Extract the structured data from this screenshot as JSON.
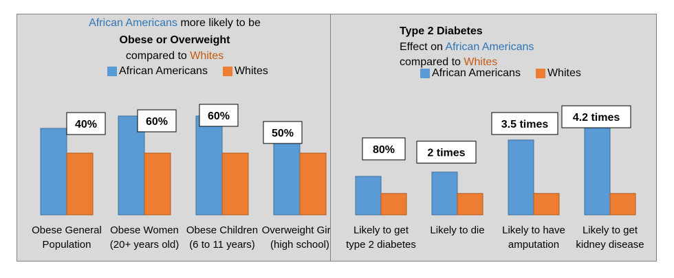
{
  "colors": {
    "african_americans": "#5b9bd5",
    "whites": "#ed7d31",
    "panel_bg": "#d9d9d9",
    "title_blue": "#2e75b6",
    "title_orange": "#c55a11"
  },
  "chart_data": [
    {
      "type": "bar",
      "title_line1_blue": "African Americans",
      "title_line1_rest": " more likely to be",
      "title_line2": "Obese or Overweight",
      "title_line3_prefix": "compared to ",
      "title_line3_orange": "Whites",
      "legend": [
        "African Americans",
        "Whites"
      ],
      "categories": [
        [
          "Obese General",
          "Population"
        ],
        [
          "Obese Women",
          "(20+ years old)"
        ],
        [
          "Obese Children",
          "(6 to 11 years)"
        ],
        [
          "Overweight Girls",
          "(high school)"
        ]
      ],
      "series": [
        {
          "name": "African Americans",
          "values": [
            1.4,
            1.6,
            1.6,
            1.5
          ]
        },
        {
          "name": "Whites",
          "values": [
            1.0,
            1.0,
            1.0,
            1.0
          ]
        }
      ],
      "data_labels": [
        "40%",
        "60%",
        "60%",
        "50%"
      ],
      "ylim": [
        0,
        1.7
      ]
    },
    {
      "type": "bar",
      "title_line1": "Type 2 Diabetes",
      "title_line2_prefix": "Effect on ",
      "title_line2_blue": "African Americans",
      "title_line3_prefix": "compared to ",
      "title_line3_orange": "Whites",
      "legend": [
        "African Americans",
        "Whites"
      ],
      "categories": [
        [
          "Likely to get",
          "type 2 diabetes"
        ],
        [
          "Likely to die",
          ""
        ],
        [
          "Likely to have",
          "amputation"
        ],
        [
          "Likely to get",
          "kidney disease"
        ]
      ],
      "series": [
        {
          "name": "African Americans",
          "values": [
            1.8,
            2.0,
            3.5,
            4.2
          ]
        },
        {
          "name": "Whites",
          "values": [
            1.0,
            1.0,
            1.0,
            1.0
          ]
        }
      ],
      "data_labels": [
        "80%",
        "2 times",
        "3.5 times",
        "4.2 times"
      ],
      "ylim": [
        0,
        4.3
      ]
    }
  ]
}
